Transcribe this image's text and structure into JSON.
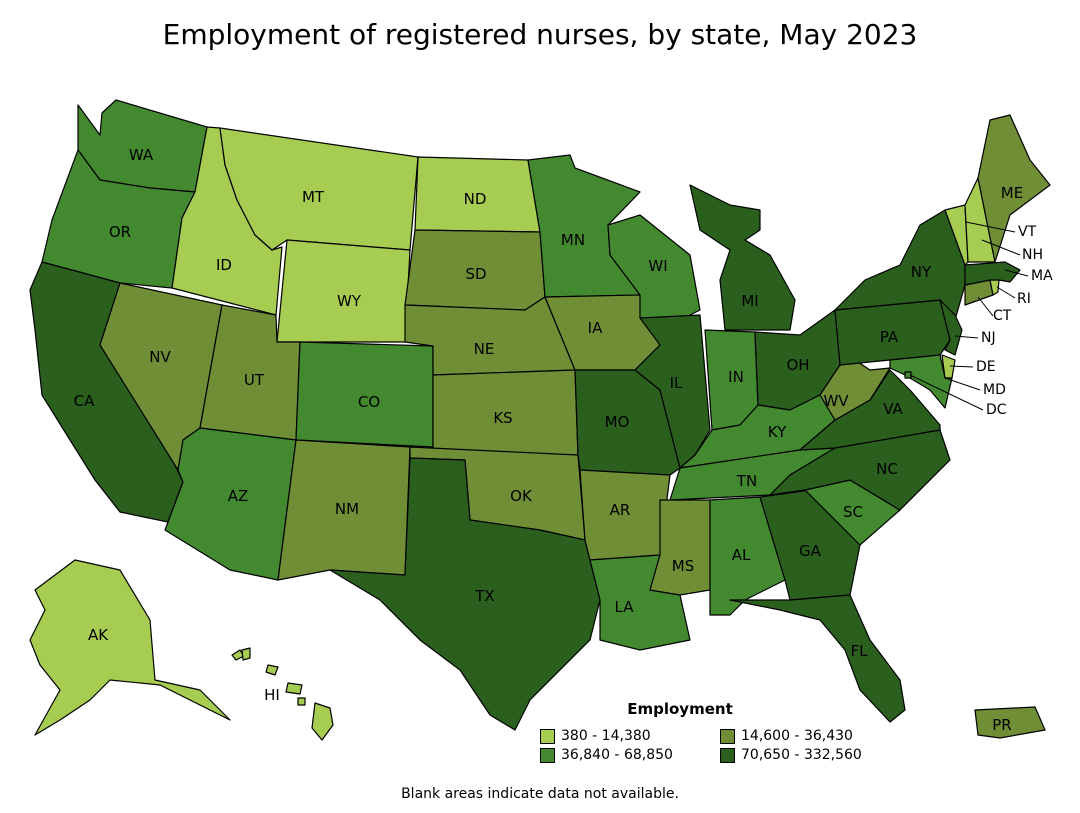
{
  "title": "Employment of registered nurses, by state, May 2023",
  "legend": {
    "title": "Employment",
    "classes": [
      {
        "label": "380 - 14,380",
        "color": "#a6cc52"
      },
      {
        "label": "14,600 - 36,430",
        "color": "#6f8e36"
      },
      {
        "label": "36,840 - 68,850",
        "color": "#43892f"
      },
      {
        "label": "70,650 - 332,560",
        "color": "#2b5f1d"
      }
    ]
  },
  "footnote": "Blank areas indicate data not available.",
  "states": {
    "WA": 2,
    "OR": 2,
    "CA": 3,
    "ID": 0,
    "NV": 1,
    "MT": 0,
    "WY": 0,
    "UT": 1,
    "AZ": 2,
    "CO": 2,
    "NM": 1,
    "ND": 0,
    "SD": 1,
    "NE": 1,
    "KS": 1,
    "OK": 1,
    "TX": 3,
    "MN": 2,
    "IA": 1,
    "MO": 3,
    "AR": 1,
    "LA": 2,
    "WI": 2,
    "IL": 3,
    "MI": 3,
    "IN": 2,
    "OH": 3,
    "KY": 2,
    "TN": 2,
    "MS": 1,
    "AL": 2,
    "GA": 3,
    "FL": 3,
    "SC": 2,
    "NC": 3,
    "VA": 3,
    "WV": 1,
    "PA": 3,
    "NY": 3,
    "ME": 1,
    "VT": 0,
    "NH": 0,
    "MA": 3,
    "RI": 0,
    "CT": 1,
    "NJ": 3,
    "DE": 0,
    "MD": 2,
    "DC": 2,
    "AK": 0,
    "HI": 0,
    "PR": 1
  }
}
